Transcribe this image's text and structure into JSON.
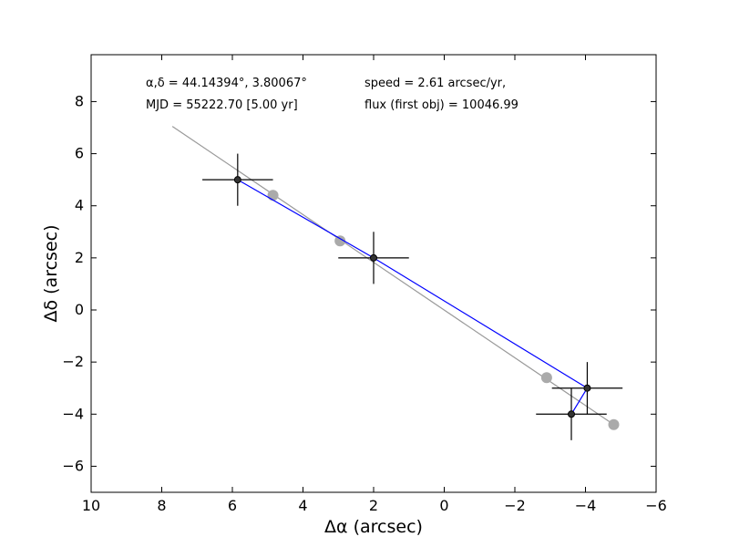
{
  "chart_data": {
    "type": "scatter",
    "xlabel": "Δα (arcsec)",
    "ylabel": "Δδ (arcsec)",
    "xlim": [
      10,
      -6
    ],
    "ylim": [
      -7,
      9.8
    ],
    "x_ticks": [
      10,
      8,
      6,
      4,
      2,
      0,
      -2,
      -4,
      -6
    ],
    "y_ticks": [
      -6,
      -4,
      -2,
      0,
      2,
      4,
      6,
      8
    ],
    "grid": false,
    "annotations": [
      "α,δ = 44.14394°, 3.80067°",
      "MJD = 55222.70 [5.00 yr]",
      "speed = 2.61 arcsec/yr,",
      "flux (first obj) = 10046.99"
    ],
    "series": [
      {
        "role": "measured",
        "style": "black points with error bars, joined by blue line",
        "color": "#000000",
        "line_color": "#0000ff",
        "points": [
          {
            "x": 5.85,
            "y": 5.0,
            "xerr": 1.0,
            "yerr": 1.0
          },
          {
            "x": 2.0,
            "y": 2.0,
            "xerr": 1.0,
            "yerr": 1.0
          },
          {
            "x": -4.05,
            "y": -3.0,
            "xerr": 1.0,
            "yerr": 1.0
          },
          {
            "x": -3.6,
            "y": -4.0,
            "xerr": 1.0,
            "yerr": 1.0
          }
        ]
      },
      {
        "role": "model",
        "style": "grey points",
        "color": "#aaaaaa",
        "points": [
          {
            "x": 4.85,
            "y": 4.4
          },
          {
            "x": 2.95,
            "y": 2.65
          },
          {
            "x": -2.9,
            "y": -2.6
          },
          {
            "x": -4.8,
            "y": -4.4
          }
        ]
      },
      {
        "role": "fit-line",
        "style": "grey line",
        "color": "#999999",
        "points": [
          {
            "x": 7.7,
            "y": 7.05
          },
          {
            "x": -4.8,
            "y": -4.4
          }
        ]
      }
    ]
  }
}
